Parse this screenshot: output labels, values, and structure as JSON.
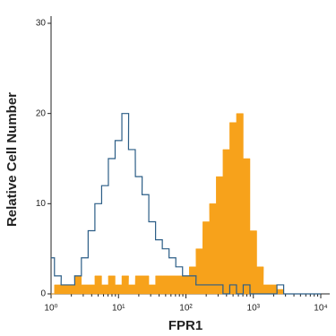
{
  "chart_data": {
    "type": "histogram",
    "xlabel": "FPR1",
    "ylabel": "Relative Cell Number",
    "xscale": "log",
    "x": [
      1,
      1.26,
      1.58,
      2,
      2.51,
      3.16,
      3.98,
      5.01,
      6.31,
      7.94,
      10,
      12.6,
      15.8,
      20,
      25.1,
      31.6,
      39.8,
      50.1,
      63.1,
      79.4,
      100,
      126,
      158,
      200,
      251,
      316,
      398,
      501,
      631,
      794,
      1000,
      1260,
      1580,
      2000,
      2510,
      3160,
      3980,
      5010,
      6310,
      7940,
      10000
    ],
    "series": [
      {
        "color": "#2b5d86",
        "fill": false,
        "values": [
          4,
          2,
          1,
          1,
          2,
          4,
          7,
          10,
          12,
          15,
          17,
          20,
          16,
          13,
          11,
          8,
          6,
          5,
          4,
          3,
          2,
          2,
          1,
          1,
          1,
          1,
          0,
          1,
          0,
          1,
          0,
          0,
          0,
          0,
          1,
          0,
          0,
          0,
          0,
          0,
          0
        ]
      },
      {
        "color": "#f7a21b",
        "fill": true,
        "values": [
          0,
          1,
          1,
          1,
          2,
          1,
          1,
          2,
          1,
          2,
          1,
          2,
          1,
          2,
          2,
          1,
          2,
          2,
          2,
          2,
          2,
          3,
          5,
          8,
          10,
          13,
          16,
          19,
          20,
          15,
          7,
          3,
          1,
          1,
          0.5,
          0,
          0,
          0,
          0,
          0,
          0
        ]
      }
    ],
    "xlim": [
      1,
      10000
    ],
    "ylim": [
      0,
      30
    ],
    "xticks": [
      {
        "value": 1,
        "label": "10⁰"
      },
      {
        "value": 10,
        "label": "10¹"
      },
      {
        "value": 100,
        "label": "10²"
      },
      {
        "value": 1000,
        "label": "10³"
      },
      {
        "value": 10000,
        "label": "10⁴"
      }
    ],
    "yticks": [
      0,
      10,
      20,
      30
    ]
  }
}
